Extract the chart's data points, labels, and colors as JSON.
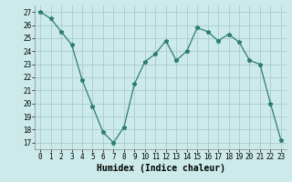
{
  "x": [
    0,
    1,
    2,
    3,
    4,
    5,
    6,
    7,
    8,
    9,
    10,
    11,
    12,
    13,
    14,
    15,
    16,
    17,
    18,
    19,
    20,
    21,
    22,
    23
  ],
  "y": [
    27,
    26.5,
    25.5,
    24.5,
    21.8,
    19.8,
    17.8,
    17.0,
    18.2,
    21.5,
    23.2,
    23.8,
    24.8,
    23.3,
    24.0,
    25.8,
    25.5,
    24.8,
    25.3,
    24.7,
    23.3,
    23.0,
    20.0,
    17.2
  ],
  "line_color": "#2d7d6e",
  "marker": "*",
  "marker_size": 3.5,
  "bg_color": "#cceaea",
  "grid_color": "#aacccc",
  "xlabel": "Humidex (Indice chaleur)",
  "xlim": [
    -0.5,
    23.5
  ],
  "ylim": [
    16.5,
    27.5
  ],
  "yticks": [
    17,
    18,
    19,
    20,
    21,
    22,
    23,
    24,
    25,
    26,
    27
  ],
  "xticks": [
    0,
    1,
    2,
    3,
    4,
    5,
    6,
    7,
    8,
    9,
    10,
    11,
    12,
    13,
    14,
    15,
    16,
    17,
    18,
    19,
    20,
    21,
    22,
    23
  ],
  "tick_fontsize": 5.5,
  "label_fontsize": 7.0
}
